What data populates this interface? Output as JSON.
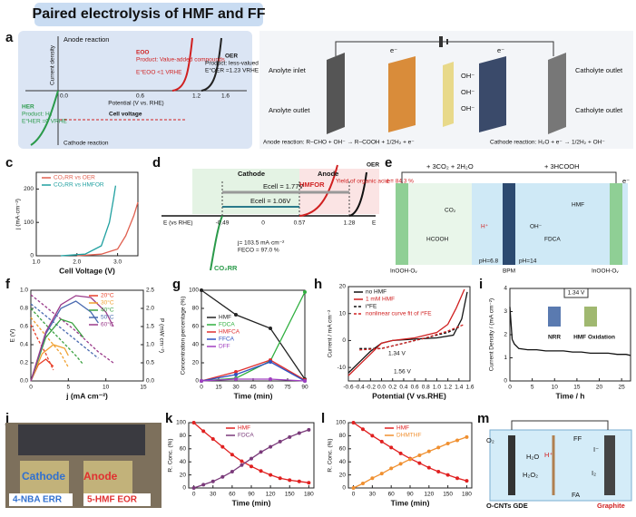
{
  "title": "Paired electrolysis of HMF and FF",
  "panel_labels": [
    "a",
    "b",
    "c",
    "d",
    "e",
    "f",
    "g",
    "h",
    "i",
    "j",
    "k",
    "l",
    "m"
  ],
  "schematic_texts": {
    "a": [
      "Anode reaction",
      "Current density",
      "EOO",
      "Product: Value-added compounds",
      "E°EOO <1 VRHE",
      "OER",
      "Product: less-valued O₂",
      "E°OER =1.23 VRHE",
      "0.0",
      "0.6",
      "1.2",
      "1.6",
      "Potential (V vs. RHE)",
      "HER",
      "Product: H₂",
      "E°HER =0 VRHE",
      "Cell voltage",
      "Cathode reaction"
    ],
    "b": [
      "Anolyte inlet",
      "Anolyte outlet",
      "Catholyte outlet",
      "Catholyte outlet",
      "e⁻",
      "e⁻",
      "OH⁻",
      "OH⁻",
      "OH⁻",
      "Anode reaction:  R–CHO + OH⁻  →  R–COOH + 1/2H₂ + e⁻",
      "Cathode reaction:  H₂O + e⁻  →  1/2H₂ + OH⁻"
    ],
    "d": [
      "Cathode",
      "Anode",
      "HMFOR",
      "Yield of organic acid = 84.3 %",
      "OER",
      "Ecell = 1.77V",
      "Ecell = 1.06V",
      "E (vs RHE)",
      "-0.49",
      "0",
      "0.57",
      "1.28",
      "E",
      "CO₂RR",
      "j= 103.5 mA·cm⁻²",
      "FECO = 97.0 %"
    ],
    "e": [
      "+ 3CO₂ + 2H₂O",
      "+ 3HCOOH",
      "e⁻",
      "e⁻",
      "CO₂",
      "HCOOH",
      "H⁺",
      "HMF",
      "FDCA",
      "OH⁻",
      "pH=6.8",
      "pH=14",
      "InOOH-Oᵥ",
      "BPM",
      "InOOH-Oᵥ"
    ],
    "j": [
      "Cathode",
      "Anode",
      "4-NBA ERR",
      "5-HMF EOR"
    ],
    "m": [
      "O₂",
      "H₂O",
      "H₂O₂",
      "FF",
      "H⁺",
      "I⁻",
      "I₂",
      "FA",
      "O-CNTs GDE",
      "Graphite"
    ]
  },
  "chart_data": [
    {
      "type": "line",
      "xlabel": "Cell Voltage (V)",
      "ylabel": "j (mA·cm⁻²)",
      "xlim": [
        1,
        3.5
      ],
      "xticks": [
        {
          "value": 1,
          "label": "1.0"
        },
        {
          "value": 2,
          "label": "2.0"
        },
        {
          "value": 3,
          "label": "3.0"
        }
      ],
      "ylim": [
        0,
        250
      ],
      "yticks": [
        0,
        100,
        200
      ],
      "legend": "upper left",
      "series": [
        {
          "name": "CO₂RR vs OER",
          "color": "#e06050",
          "x": [
            2.0,
            2.6,
            3.0,
            3.2,
            3.4,
            3.5
          ],
          "values": [
            0,
            5,
            20,
            60,
            120,
            160
          ]
        },
        {
          "name": "CO₂RR vs HMFOR",
          "color": "#20a0a0",
          "x": [
            1.6,
            2.2,
            2.6,
            2.8,
            2.9,
            2.95
          ],
          "values": [
            0,
            5,
            30,
            100,
            170,
            210
          ]
        }
      ]
    },
    {
      "type": "line",
      "xlabel": "j (mA cm⁻²)",
      "ylabel": "E (V)",
      "y2label": "P (mW cm⁻²)",
      "xlim": [
        0,
        15
      ],
      "xticks": [
        0,
        5,
        10,
        15
      ],
      "ylim": [
        0,
        1
      ],
      "yticks": [
        {
          "value": 0,
          "label": "0.0"
        },
        {
          "value": 0.2,
          "label": "0.2"
        },
        {
          "value": 0.4,
          "label": "0.4"
        },
        {
          "value": 0.6,
          "label": "0.6"
        },
        {
          "value": 0.8,
          "label": "0.8"
        },
        {
          "value": 1,
          "label": "1.0"
        }
      ],
      "y2lim": [
        0,
        2.5
      ],
      "y2ticks": [
        {
          "value": 0,
          "label": "0.0"
        },
        {
          "value": 0.5,
          "label": "0.5"
        },
        {
          "value": 1,
          "label": "1.0"
        },
        {
          "value": 1.5,
          "label": "1.5"
        },
        {
          "value": 2,
          "label": "2.0"
        },
        {
          "value": 2.5,
          "label": "2.5"
        }
      ],
      "legend": "upper right",
      "series": [
        {
          "color": "#e8402a",
          "dash": true,
          "x": [
            0,
            1,
            2,
            3
          ],
          "values": [
            0.62,
            0.45,
            0.3,
            0.12
          ]
        },
        {
          "color": "#f0a030",
          "dash": true,
          "x": [
            0,
            2,
            4,
            5
          ],
          "values": [
            0.7,
            0.5,
            0.3,
            0.15
          ]
        },
        {
          "color": "#3aa040",
          "dash": true,
          "x": [
            0,
            2,
            4,
            6,
            7
          ],
          "values": [
            0.8,
            0.62,
            0.45,
            0.28,
            0.18
          ]
        },
        {
          "color": "#4a6ab0",
          "dash": true,
          "x": [
            0,
            3,
            6,
            9
          ],
          "values": [
            0.85,
            0.65,
            0.45,
            0.25
          ]
        },
        {
          "color": "#9a3a8a",
          "dash": true,
          "x": [
            0,
            3,
            6,
            9,
            11
          ],
          "values": [
            0.95,
            0.75,
            0.55,
            0.32,
            0.2
          ]
        },
        {
          "name": "20°C",
          "color": "#e8402a",
          "axis": "y2",
          "x": [
            0,
            1,
            2,
            3
          ],
          "values": [
            0,
            0.45,
            0.6,
            0.4
          ]
        },
        {
          "name": "30°C",
          "color": "#f0a030",
          "axis": "y2",
          "x": [
            0,
            1.5,
            3,
            4.5,
            5
          ],
          "values": [
            0,
            0.75,
            1.0,
            0.9,
            0.7
          ]
        },
        {
          "name": "40°C",
          "color": "#3aa040",
          "axis": "y2",
          "x": [
            0,
            2,
            4,
            5.5,
            7
          ],
          "values": [
            0,
            1.2,
            1.7,
            1.6,
            1.2
          ]
        },
        {
          "name": "50°C",
          "color": "#4a6ab0",
          "axis": "y2",
          "x": [
            0,
            2,
            4,
            6,
            8,
            9
          ],
          "values": [
            0,
            1.3,
            2.0,
            2.2,
            1.9,
            1.6
          ]
        },
        {
          "name": "60°C",
          "color": "#9a3a8a",
          "axis": "y2",
          "x": [
            0,
            2,
            4,
            6,
            8,
            10,
            11
          ],
          "values": [
            0,
            1.35,
            2.1,
            2.35,
            2.3,
            1.9,
            1.5
          ]
        }
      ]
    },
    {
      "type": "line",
      "xlabel": "Time (min)",
      "ylabel": "Concentration percentage (%)",
      "xlim": [
        0,
        90
      ],
      "xticks": [
        0,
        15,
        30,
        45,
        60,
        75,
        90
      ],
      "ylim": [
        0,
        100
      ],
      "yticks": [
        0,
        20,
        40,
        60,
        80,
        100
      ],
      "legend": "center left",
      "series": [
        {
          "name": "HMF",
          "color": "#222222",
          "marker": true,
          "x": [
            0,
            30,
            60,
            90
          ],
          "values": [
            100,
            73,
            58,
            2
          ]
        },
        {
          "name": "FDCA",
          "color": "#30b040",
          "marker": true,
          "x": [
            0,
            30,
            60,
            90
          ],
          "values": [
            0,
            3,
            22,
            98
          ]
        },
        {
          "name": "HMFCA",
          "color": "#e03030",
          "marker": true,
          "x": [
            0,
            30,
            60,
            90
          ],
          "values": [
            0,
            10,
            23,
            1
          ]
        },
        {
          "name": "FFCA",
          "color": "#3050c0",
          "marker": true,
          "x": [
            0,
            30,
            60,
            90
          ],
          "values": [
            0,
            7,
            21,
            0
          ]
        },
        {
          "name": "DFF",
          "color": "#a040c0",
          "marker": true,
          "x": [
            0,
            30,
            60,
            90
          ],
          "values": [
            0,
            2,
            2,
            0
          ]
        }
      ]
    },
    {
      "type": "line",
      "xlabel": "Potential (V vs.RHE)",
      "ylabel": "Current / mA cm⁻²",
      "xlim": [
        -0.6,
        1.6
      ],
      "xticks": [
        -0.6,
        -0.4,
        -0.2,
        {
          "value": 0,
          "label": "0.0"
        },
        0.2,
        0.4,
        0.6,
        0.8,
        {
          "value": 1,
          "label": "1.0"
        },
        1.2,
        1.4,
        1.6
      ],
      "ylim": [
        -15,
        20
      ],
      "yticks": [
        -10,
        0,
        10,
        20
      ],
      "legend": "upper left",
      "annotations": [
        "1.34 V",
        "1.56 V"
      ],
      "series": [
        {
          "name": "no HMF",
          "color": "#111111",
          "x": [
            -0.6,
            -0.4,
            -0.2,
            0,
            0.2,
            0.6,
            1.0,
            1.3,
            1.45,
            1.55
          ],
          "values": [
            -12,
            -8,
            -4,
            -1,
            0,
            0.5,
            1,
            2,
            8,
            18
          ]
        },
        {
          "name": "1 mM HMF",
          "color": "#d02020",
          "x": [
            -0.6,
            -0.4,
            -0.2,
            0,
            0.2,
            0.6,
            1.0,
            1.2,
            1.35,
            1.5
          ],
          "values": [
            -13,
            -9,
            -5,
            -1,
            0,
            1,
            3,
            6,
            12,
            19
          ]
        },
        {
          "name": "i*FE",
          "color": "#111111",
          "dash": true,
          "x": [
            -0.4,
            -0.2,
            0,
            0.4,
            0.8,
            1.2,
            1.4
          ],
          "values": [
            -3,
            -3,
            -3,
            -1,
            1,
            3,
            5
          ]
        },
        {
          "name": "nonlinear curve fit of i*FE",
          "color": "#d02020",
          "dash": true,
          "x": [
            -0.4,
            0,
            0.4,
            0.8,
            1.2,
            1.5
          ],
          "values": [
            -3.5,
            -3,
            -1,
            1,
            3.5,
            6
          ]
        }
      ]
    },
    {
      "type": "line",
      "xlabel": "Time / h",
      "ylabel": "Current Density / (mA cm⁻²)",
      "xlim": [
        0,
        27
      ],
      "xticks": [
        0,
        5,
        10,
        15,
        20,
        25
      ],
      "ylim": [
        0,
        4
      ],
      "yticks": [
        0,
        1,
        2,
        3,
        4
      ],
      "annotations": [
        "1.34 V",
        "NRR",
        "HMF Oxidation"
      ],
      "series": [
        {
          "color": "#111111",
          "x": [
            0,
            0.5,
            1,
            2,
            4,
            6,
            8,
            10,
            12,
            14,
            16,
            18,
            20,
            22,
            24,
            26,
            27
          ],
          "values": [
            3.2,
            1.8,
            1.6,
            1.4,
            1.35,
            1.35,
            1.3,
            1.3,
            1.3,
            1.25,
            1.25,
            1.2,
            1.2,
            1.2,
            1.15,
            1.15,
            1.1
          ]
        }
      ]
    },
    {
      "type": "line",
      "xlabel": "Time (min)",
      "ylabel": "R. Conc. (%)",
      "xlim": [
        -8,
        188
      ],
      "xticks": [
        0,
        30,
        60,
        90,
        120,
        150,
        180
      ],
      "ylim": [
        0,
        100
      ],
      "yticks": [
        0,
        20,
        40,
        60,
        80,
        100
      ],
      "legend": "upper center",
      "series": [
        {
          "name": "HMF",
          "color": "#e02020",
          "marker": true,
          "x": [
            0,
            15,
            30,
            45,
            60,
            75,
            90,
            105,
            120,
            135,
            150,
            165,
            180
          ],
          "values": [
            100,
            87,
            75,
            63,
            51,
            41,
            33,
            26,
            20,
            15,
            12,
            10,
            8
          ]
        },
        {
          "name": "FDCA",
          "color": "#7a3a7a",
          "marker": true,
          "x": [
            0,
            15,
            30,
            45,
            60,
            75,
            90,
            105,
            120,
            135,
            150,
            165,
            180
          ],
          "values": [
            0,
            5,
            10,
            17,
            25,
            35,
            45,
            55,
            63,
            71,
            78,
            84,
            89
          ]
        }
      ]
    },
    {
      "type": "line",
      "xlabel": "Time (min)",
      "ylabel": "R. Conc. (%)",
      "xlim": [
        -8,
        188
      ],
      "xticks": [
        0,
        30,
        60,
        90,
        120,
        150,
        180
      ],
      "ylim": [
        0,
        100
      ],
      "yticks": [
        0,
        20,
        40,
        60,
        80,
        100
      ],
      "legend": "upper center",
      "series": [
        {
          "name": "HMF",
          "color": "#e02020",
          "marker": true,
          "x": [
            0,
            15,
            30,
            45,
            60,
            75,
            90,
            105,
            120,
            135,
            150,
            165,
            180
          ],
          "values": [
            100,
            90,
            80,
            71,
            62,
            53,
            45,
            38,
            31,
            25,
            20,
            15,
            11
          ]
        },
        {
          "name": "DHMTHF",
          "color": "#f09030",
          "marker": true,
          "x": [
            0,
            15,
            30,
            45,
            60,
            75,
            90,
            105,
            120,
            135,
            150,
            165,
            180
          ],
          "values": [
            0,
            7,
            15,
            22,
            30,
            37,
            44,
            50,
            56,
            62,
            68,
            73,
            78
          ]
        }
      ]
    }
  ]
}
